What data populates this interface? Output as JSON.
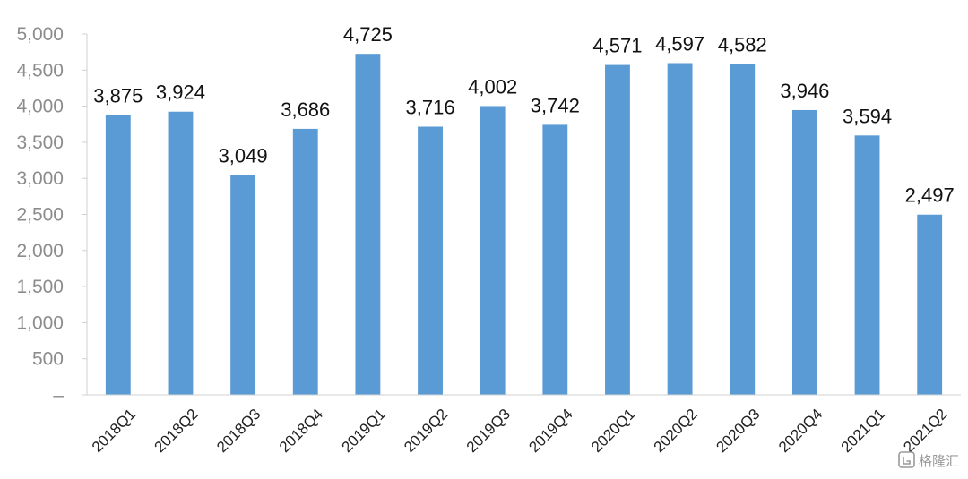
{
  "chart_data": {
    "type": "bar",
    "categories": [
      "2018Q1",
      "2018Q2",
      "2018Q3",
      "2018Q4",
      "2019Q1",
      "2019Q2",
      "2019Q3",
      "2019Q4",
      "2020Q1",
      "2020Q2",
      "2020Q3",
      "2020Q4",
      "2021Q1",
      "2021Q2"
    ],
    "values": [
      3875,
      3924,
      3049,
      3686,
      4725,
      3716,
      4002,
      3742,
      4571,
      4597,
      4582,
      3946,
      3594,
      2497
    ],
    "data_labels": [
      "3,875",
      "3,924",
      "3,049",
      "3,686",
      "4,725",
      "3,716",
      "4,002",
      "3,742",
      "4,571",
      "4,597",
      "4,582",
      "3,946",
      "3,594",
      "2,497"
    ],
    "y_tick_labels": [
      "–",
      "500",
      "1,000",
      "1,500",
      "2,000",
      "2,500",
      "3,000",
      "3,500",
      "4,000",
      "4,500",
      "5,000"
    ],
    "ylim": [
      0,
      5000
    ],
    "y_step": 500,
    "grid": false,
    "legend": "none",
    "bar_color": "#5B9BD5",
    "axis_color": "#d0d0d0"
  },
  "watermark": {
    "text": "格隆汇"
  }
}
